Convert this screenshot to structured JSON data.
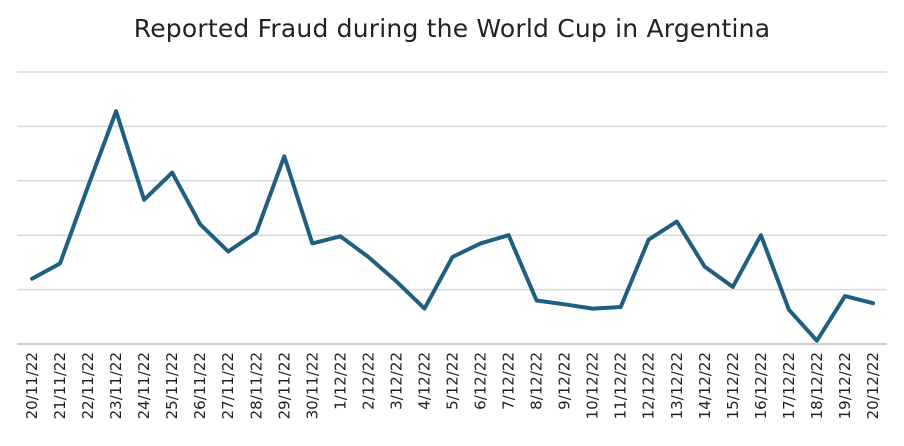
{
  "chart_data": {
    "type": "line",
    "title": "Reported Fraud during the World Cup in Argentina",
    "xlabel": "",
    "ylabel": "",
    "ylim": [
      0,
      5
    ],
    "grid": true,
    "y_gridlines": [
      1,
      2,
      3,
      4,
      5
    ],
    "y_tick_labels_shown": false,
    "legend": "none",
    "line_color": "#1F5F7F",
    "categories": [
      "20/11/22",
      "21/11/22",
      "22/11/22",
      "23/11/22",
      "24/11/22",
      "25/11/22",
      "26/11/22",
      "27/11/22",
      "28/11/22",
      "29/11/22",
      "30/11/22",
      "1/12/22",
      "2/12/22",
      "3/12/22",
      "4/12/22",
      "5/12/22",
      "6/12/22",
      "7/12/22",
      "8/12/22",
      "9/12/22",
      "10/12/22",
      "11/12/22",
      "12/12/22",
      "13/12/22",
      "14/12/22",
      "15/12/22",
      "16/12/22",
      "17/12/22",
      "18/12/22",
      "19/12/22",
      "20/12/22"
    ],
    "series": [
      {
        "values": [
          1.2,
          1.48,
          2.9,
          4.28,
          2.65,
          3.15,
          2.2,
          1.7,
          2.05,
          3.45,
          1.85,
          1.98,
          1.6,
          1.15,
          0.65,
          1.6,
          1.85,
          2.0,
          0.8,
          0.73,
          0.65,
          0.68,
          1.92,
          2.25,
          1.42,
          1.05,
          2.0,
          0.63,
          0.06,
          0.88,
          0.75
        ]
      }
    ]
  }
}
